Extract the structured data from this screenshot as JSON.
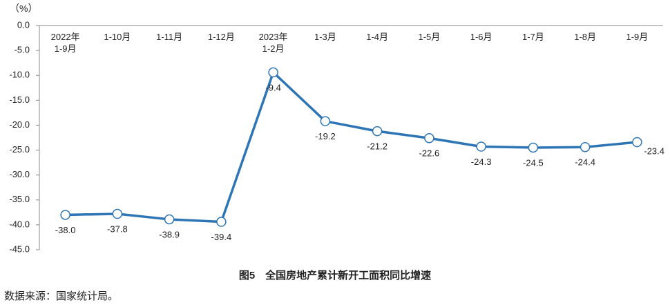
{
  "chart_data": {
    "type": "line",
    "unit_label": "（%）",
    "title": "图5　全国房地产累计新开工面积同比增速",
    "source": "数据来源：国家统计局。",
    "categories": [
      "2022年\n1-9月",
      "1-10月",
      "1-11月",
      "1-12月",
      "2023年\n1-2月",
      "1-3月",
      "1-4月",
      "1-5月",
      "1-6月",
      "1-7月",
      "1-8月",
      "1-9月"
    ],
    "series": [
      {
        "color": "#2e75b6",
        "values": [
          -38.0,
          -37.8,
          -38.9,
          -39.4,
          -9.4,
          -19.2,
          -21.2,
          -22.6,
          -24.3,
          -24.5,
          -24.4,
          -23.4
        ],
        "value_labels": [
          "-38.0",
          "-37.8",
          "-38.9",
          "-39.4",
          "-9.4",
          "-19.2",
          "-21.2",
          "-22.6",
          "-24.3",
          "-24.5",
          "-24.4",
          "-23.4"
        ]
      }
    ],
    "ylim": [
      -45,
      0
    ],
    "yticks": [
      {
        "value": 0,
        "label": "0.0"
      },
      {
        "value": -5,
        "label": "-5.0"
      },
      {
        "value": -10,
        "label": "-10.0"
      },
      {
        "value": -15,
        "label": "-15.0"
      },
      {
        "value": -20,
        "label": "-20.0"
      },
      {
        "value": -25,
        "label": "-25.0"
      },
      {
        "value": -30,
        "label": "-30.0"
      },
      {
        "value": -35,
        "label": "-35.0"
      },
      {
        "value": -40,
        "label": "-40.0"
      },
      {
        "value": -45,
        "label": "-45.0"
      }
    ],
    "grid": false
  }
}
